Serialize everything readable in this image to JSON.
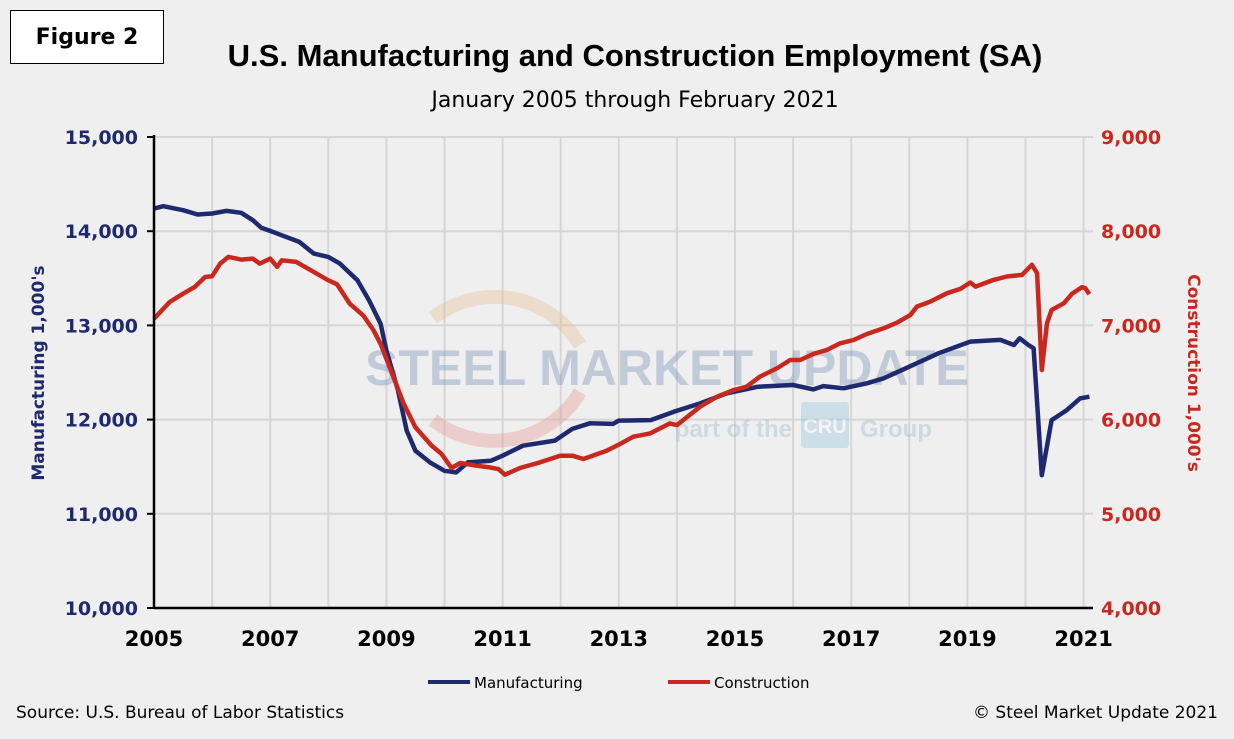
{
  "figure_label": "Figure 2",
  "source": "Source: U.S. Bureau  of Labor Statistics",
  "copyright": "© Steel Market Update 2021",
  "watermark": {
    "main": "STEEL MARKET UPDATE",
    "sub_left": "part of the",
    "sub_logo": "CRU",
    "sub_right": "Group"
  },
  "chart_data": {
    "type": "line",
    "title": "U.S. Manufacturing and Construction Employment (SA)",
    "subtitle": "January 2005 through February 2021",
    "ylabel": "Manufacturing 1,000's",
    "y2label": "Construction 1,000's",
    "xlim": [
      2005,
      2021.1
    ],
    "ylim": [
      10000,
      15000
    ],
    "y2lim": [
      4000,
      9000
    ],
    "x_ticks": [
      "2005",
      "2007",
      "2009",
      "2011",
      "2013",
      "2015",
      "2017",
      "2019",
      "2021"
    ],
    "y_ticks": [
      "10,000",
      "11,000",
      "12,000",
      "13,000",
      "14,000",
      "15,000"
    ],
    "y2_ticks": [
      "4,000",
      "5,000",
      "6,000",
      "7,000",
      "8,000",
      "9,000"
    ],
    "grid": true,
    "legend": "bottom",
    "colors": {
      "manufacturing": "#1F2A6E",
      "construction": "#C9281E",
      "left_axis": "#1F2A6E",
      "right_axis": "#C9281E"
    },
    "series": [
      {
        "name": "Manufacturing",
        "axis": "left",
        "color": "#1F2A6E",
        "x": [
          2005.0,
          2005.16,
          2005.5,
          2005.75,
          2006.0,
          2006.25,
          2006.5,
          2006.7,
          2006.85,
          2007.0,
          2007.2,
          2007.5,
          2007.75,
          2008.0,
          2008.2,
          2008.5,
          2008.7,
          2008.9,
          2009.0,
          2009.2,
          2009.35,
          2009.5,
          2009.75,
          2010.0,
          2010.2,
          2010.4,
          2010.8,
          2011.0,
          2011.35,
          2011.9,
          2012.2,
          2012.5,
          2012.9,
          2013.0,
          2013.55,
          2013.95,
          2014.4,
          2014.86,
          2015.4,
          2016.0,
          2016.35,
          2016.52,
          2016.87,
          2017.27,
          2017.56,
          2018.0,
          2018.5,
          2019.05,
          2019.57,
          2019.8,
          2019.9,
          2020.05,
          2020.14,
          2020.28,
          2020.45,
          2020.71,
          2020.94,
          2021.1
        ],
        "y": [
          14240,
          14265,
          14223,
          14177,
          14188,
          14216,
          14195,
          14117,
          14035,
          14003,
          13957,
          13886,
          13762,
          13727,
          13656,
          13479,
          13266,
          13018,
          12734,
          12309,
          11883,
          11670,
          11546,
          11457,
          11440,
          11546,
          11564,
          11617,
          11723,
          11777,
          11901,
          11961,
          11954,
          11989,
          11995,
          12084,
          12172,
          12279,
          12349,
          12367,
          12321,
          12356,
          12332,
          12385,
          12438,
          12562,
          12704,
          12828,
          12846,
          12792,
          12863,
          12792,
          12757,
          11410,
          11995,
          12101,
          12225,
          12243
        ]
      },
      {
        "name": "Construction",
        "axis": "right",
        "color": "#C9281E",
        "x": [
          2005.0,
          2005.27,
          2005.5,
          2005.7,
          2005.88,
          2006.0,
          2006.14,
          2006.28,
          2006.5,
          2006.7,
          2006.82,
          2007.0,
          2007.12,
          2007.2,
          2007.45,
          2007.7,
          2008.0,
          2008.15,
          2008.37,
          2008.6,
          2008.78,
          2008.9,
          2009.1,
          2009.3,
          2009.5,
          2009.78,
          2009.95,
          2010.12,
          2010.27,
          2010.55,
          2010.78,
          2010.93,
          2011.04,
          2011.3,
          2011.64,
          2011.99,
          2012.2,
          2012.39,
          2012.79,
          2013.02,
          2013.25,
          2013.54,
          2013.88,
          2014.0,
          2014.4,
          2014.69,
          2014.98,
          2015.2,
          2015.43,
          2015.72,
          2015.95,
          2016.12,
          2016.35,
          2016.58,
          2016.81,
          2017.04,
          2017.27,
          2017.56,
          2017.79,
          2018.02,
          2018.13,
          2018.36,
          2018.65,
          2018.88,
          2019.05,
          2019.14,
          2019.45,
          2019.68,
          2019.94,
          2020.11,
          2020.2,
          2020.28,
          2020.37,
          2020.45,
          2020.66,
          2020.8,
          2020.97,
          2021.03,
          2021.1
        ],
        "y": [
          7071,
          7248,
          7337,
          7408,
          7514,
          7521,
          7656,
          7727,
          7699,
          7709,
          7656,
          7709,
          7621,
          7691,
          7674,
          7585,
          7479,
          7436,
          7230,
          7106,
          6947,
          6805,
          6486,
          6167,
          5918,
          5723,
          5635,
          5486,
          5539,
          5511,
          5493,
          5475,
          5415,
          5486,
          5546,
          5617,
          5617,
          5582,
          5670,
          5741,
          5818,
          5853,
          5960,
          5942,
          6137,
          6243,
          6314,
          6349,
          6456,
          6544,
          6633,
          6633,
          6697,
          6739,
          6810,
          6845,
          6909,
          6969,
          7030,
          7111,
          7200,
          7253,
          7342,
          7388,
          7455,
          7412,
          7483,
          7519,
          7536,
          7643,
          7554,
          6527,
          7023,
          7164,
          7235,
          7335,
          7405,
          7395,
          7331
        ]
      }
    ]
  }
}
